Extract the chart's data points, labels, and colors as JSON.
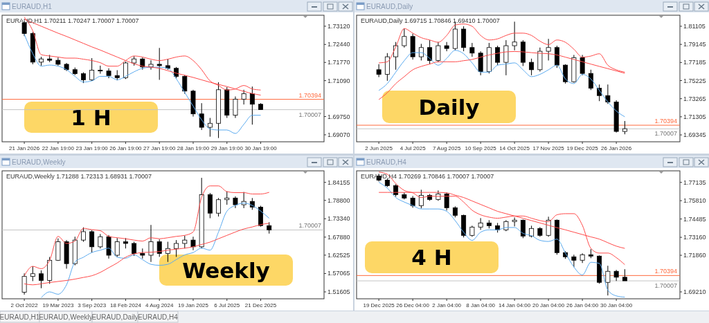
{
  "chart_data": [
    {
      "type": "candlestick",
      "title": "EURAUD,H1",
      "subtitle": "EURAUD,H1  1.70211 1.70247 1.70007 1.70007",
      "annotations": [
        "1 H"
      ],
      "categories": [
        "21 Jan 2026",
        null,
        null,
        null,
        "22 Jan 19:00",
        null,
        null,
        null,
        "23 Jan 19:00",
        null,
        null,
        null,
        "26 Jan 19:00",
        null,
        null,
        null,
        "27 Jan 19:00",
        null,
        null,
        null,
        "28 Jan 19:00",
        null,
        null,
        null,
        "29 Jan 19:00",
        null,
        null,
        null,
        "30 Jan 19:00",
        null,
        null,
        null,
        null,
        null,
        null,
        null
      ],
      "ohlc": [
        [
          1.7325,
          1.733,
          1.7275,
          1.7285
        ],
        [
          1.7285,
          1.729,
          1.717,
          1.7178
        ],
        [
          1.7178,
          1.7198,
          1.7165,
          1.719
        ],
        [
          1.719,
          1.7205,
          1.7178,
          1.7185
        ],
        [
          1.7185,
          1.7195,
          1.7165,
          1.717
        ],
        [
          1.717,
          1.7175,
          1.7145,
          1.715
        ],
        [
          1.715,
          1.7158,
          1.713,
          1.7135
        ],
        [
          1.7135,
          1.714,
          1.71,
          1.7112
        ],
        [
          1.7112,
          1.7193,
          1.7108,
          1.7148
        ],
        [
          1.7148,
          1.7165,
          1.7135,
          1.7145
        ],
        [
          1.7145,
          1.7155,
          1.7118,
          1.7128
        ],
        [
          1.7128,
          1.7148,
          1.711,
          1.712
        ],
        [
          1.712,
          1.718,
          1.7115,
          1.7175
        ],
        [
          1.7175,
          1.72,
          1.7165,
          1.719
        ],
        [
          1.719,
          1.7195,
          1.715,
          1.716
        ],
        [
          1.716,
          1.7185,
          1.715,
          1.717
        ],
        [
          1.717,
          1.7231,
          1.7112,
          1.7165
        ],
        [
          1.7165,
          1.719,
          1.715,
          1.7155
        ],
        [
          1.7155,
          1.716,
          1.7118,
          1.7125
        ],
        [
          1.7125,
          1.713,
          1.706,
          1.707
        ],
        [
          1.707,
          1.7075,
          1.6975,
          1.6985
        ],
        [
          1.6985,
          1.7025,
          1.6925,
          1.6935
        ],
        [
          1.6935,
          1.697,
          1.69,
          1.695
        ],
        [
          1.695,
          1.7103,
          1.6895,
          1.7075
        ],
        [
          1.7075,
          1.7085,
          1.697,
          1.698
        ],
        [
          1.698,
          1.705,
          1.697,
          1.704
        ],
        [
          1.704,
          1.7075,
          1.702,
          1.706
        ],
        [
          1.706,
          1.7087,
          1.6945,
          1.7021
        ],
        [
          1.7021,
          1.7025,
          1.7001,
          1.7001
        ],
        null,
        null,
        null,
        null,
        null,
        null,
        null
      ],
      "series": [
        {
          "type": "line",
          "color": "#ff4a4a",
          "values": [
            1.7346,
            1.7295,
            1.7206,
            1.7201,
            1.7197,
            1.7193,
            1.7193,
            1.7189,
            1.7184,
            1.7176,
            1.7163,
            1.7163,
            1.7184,
            1.7201,
            1.7197,
            1.7189,
            1.7184,
            1.7189,
            1.7197,
            1.7201,
            1.7184,
            1.715,
            1.7108,
            1.7091,
            1.7074,
            1.7078,
            1.7091,
            1.7078,
            1.7074,
            null,
            null,
            null,
            null,
            null,
            null,
            null
          ]
        },
        {
          "type": "line",
          "color": "#5aaaf0",
          "values": [
            1.7282,
            1.721,
            1.7163,
            1.7167,
            1.7163,
            1.715,
            1.7125,
            1.7104,
            1.7108,
            1.7125,
            1.7125,
            1.7112,
            1.7125,
            1.7142,
            1.7155,
            1.7159,
            1.7159,
            1.7155,
            1.7116,
            1.7065,
            1.7014,
            1.6963,
            1.6929,
            1.6925,
            1.6925,
            1.6912,
            1.6946,
            1.698,
            1.698,
            null,
            null,
            null,
            null,
            null,
            null,
            null
          ]
        },
        {
          "type": "line",
          "color": "#ff4a4a",
          "values": [
            1.7338,
            1.7325,
            1.7312,
            1.7299,
            1.7286,
            1.7274,
            1.7261,
            1.7248,
            1.7235,
            1.7223,
            1.721,
            1.7197,
            1.7184,
            1.7172,
            1.7163,
            1.7159,
            1.7155,
            1.7146,
            1.7137,
            1.7129,
            1.7121,
            1.7112,
            1.7103,
            1.7095,
            1.7087,
            1.7078,
            1.7069,
            1.7061,
            1.7055,
            null,
            null,
            null,
            null,
            null,
            null,
            null
          ]
        }
      ],
      "ylim": [
        1.6881,
        1.7353
      ],
      "yticks": [
        {
          "value": 1.7312,
          "label": "1.73120"
        },
        {
          "value": 1.7244,
          "label": "1.72440"
        },
        {
          "value": 1.7177,
          "label": "1.71770"
        },
        {
          "value": 1.7109,
          "label": "1.71090"
        },
        {
          "value": 1.6975,
          "label": "1.69750"
        },
        {
          "value": 1.6907,
          "label": "1.69070"
        }
      ],
      "ref_lines": [
        {
          "axis": "y",
          "value": 1.70394,
          "label": "1.70394",
          "color": "#ff6a3d"
        },
        {
          "axis": "y",
          "value": 1.70007,
          "label": "1.70007",
          "color": "#c4c4c4"
        }
      ]
    },
    {
      "type": "candlestick",
      "title": "EURAUD,Daily",
      "subtitle": "EURAUD,Daily  1.69715 1.70846 1.69410 1.70007",
      "annotations": [
        "Daily"
      ],
      "categories": [
        "2 Jun 2025",
        null,
        null,
        null,
        "4 Jul 2025",
        null,
        null,
        null,
        "7 Aug 2025",
        null,
        null,
        null,
        "10 Sep 2025",
        null,
        null,
        null,
        "14 Oct 2025",
        null,
        null,
        null,
        "17 Nov 2025",
        null,
        null,
        null,
        "19 Dec 2025",
        null,
        null,
        null,
        "26 Jan 2026",
        null,
        null,
        null,
        null,
        null,
        null,
        null
      ],
      "ohlc": [
        [
          1.764,
          1.77,
          1.756,
          1.759
        ],
        [
          1.759,
          1.782,
          1.752,
          1.778
        ],
        [
          1.778,
          1.794,
          1.764,
          1.79
        ],
        [
          1.79,
          1.8086,
          1.788,
          1.8
        ],
        [
          1.8,
          1.803,
          1.775,
          1.778
        ],
        [
          1.778,
          1.792,
          1.774,
          1.788
        ],
        [
          1.788,
          1.796,
          1.77,
          1.774
        ],
        [
          1.774,
          1.794,
          1.772,
          1.79
        ],
        [
          1.79,
          1.794,
          1.784,
          1.787
        ],
        [
          1.787,
          1.816,
          1.785,
          1.808
        ],
        [
          1.808,
          1.811,
          1.784,
          1.788
        ],
        [
          1.788,
          1.793,
          1.778,
          1.782
        ],
        [
          1.782,
          1.784,
          1.758,
          1.762
        ],
        [
          1.762,
          1.793,
          1.76,
          1.788
        ],
        [
          1.788,
          1.79,
          1.769,
          1.772
        ],
        [
          1.772,
          1.796,
          1.758,
          1.79
        ],
        [
          1.79,
          1.816,
          1.785,
          1.794
        ],
        [
          1.794,
          1.796,
          1.768,
          1.772
        ],
        [
          1.772,
          1.776,
          1.758,
          1.764
        ],
        [
          1.764,
          1.788,
          1.762,
          1.784
        ],
        [
          1.784,
          1.7974,
          1.774,
          1.788
        ],
        [
          1.788,
          1.79,
          1.766,
          1.769
        ],
        [
          1.769,
          1.77,
          1.749,
          1.751
        ],
        [
          1.751,
          1.78,
          1.75,
          1.777
        ],
        [
          1.777,
          1.78,
          1.758,
          1.76
        ],
        [
          1.76,
          1.764,
          1.742,
          1.744
        ],
        [
          1.744,
          1.748,
          1.73,
          1.736
        ],
        [
          1.736,
          1.748,
          1.727,
          1.729
        ],
        [
          1.729,
          1.731,
          1.696,
          1.6972
        ],
        [
          1.6972,
          1.7085,
          1.6941,
          1.7001
        ],
        null,
        null,
        null,
        null,
        null,
        null
      ],
      "series": [
        {
          "type": "line",
          "color": "#ff4a4a",
          "values": [
            1.7714,
            1.7726,
            1.7887,
            1.8086,
            1.8036,
            1.7987,
            1.7962,
            1.7937,
            1.8011,
            1.8123,
            1.8135,
            1.811,
            1.8011,
            1.7962,
            1.7974,
            1.8011,
            1.8036,
            1.8036,
            1.8011,
            1.7949,
            1.7912,
            1.7962,
            1.7937,
            1.7862,
            1.7776,
            1.7788,
            1.7813,
            1.7689,
            1.7639,
            1.7614,
            null,
            null,
            null,
            null,
            null,
            null
          ]
        },
        {
          "type": "line",
          "color": "#5aaaf0",
          "values": [
            1.7416,
            1.749,
            1.7614,
            1.7738,
            1.7825,
            1.7825,
            1.7763,
            1.7689,
            1.7763,
            1.785,
            1.7813,
            1.7714,
            1.7614,
            1.7614,
            1.7689,
            1.7701,
            1.7714,
            1.7639,
            1.7565,
            1.759,
            1.7639,
            1.7689,
            1.754,
            1.749,
            1.759,
            1.754,
            1.7416,
            1.7292,
            1.7193,
            1.7131,
            null,
            null,
            null,
            null,
            null,
            null
          ]
        },
        {
          "type": "line",
          "color": "#ff4a4a",
          "values": [
            1.7317,
            1.7391,
            1.749,
            1.7565,
            1.7639,
            1.7676,
            1.7701,
            1.7726,
            1.7726,
            1.7726,
            1.7738,
            1.7751,
            1.7776,
            1.78,
            1.7818,
            1.7833,
            1.7837,
            1.7833,
            1.7825,
            1.7818,
            1.7813,
            1.78,
            1.7776,
            1.7751,
            1.7726,
            1.7701,
            1.7676,
            1.7652,
            1.7627,
            1.7602,
            null,
            null,
            null,
            null,
            null,
            null
          ]
        }
      ],
      "ylim": [
        1.686,
        1.823
      ],
      "yticks": [
        1.81105,
        1.79145,
        1.77185,
        1.75225,
        1.73265,
        1.71305,
        1.69345
      ],
      "ref_lines": [
        {
          "axis": "y",
          "value": 1.70394,
          "label": "1.70394",
          "color": "#ff6a3d"
        },
        {
          "axis": "y",
          "value": 1.70007,
          "label": "1.70007",
          "color": "#c4c4c4"
        }
      ]
    },
    {
      "type": "candlestick",
      "title": "EURAUD,Weekly",
      "subtitle": "EURAUD,Weekly  1.71288 1.72313 1.68931 1.70007",
      "annotations": [
        "Weekly"
      ],
      "categories": [
        "2 Oct 2022",
        null,
        null,
        null,
        "19 Mar 2023",
        null,
        null,
        null,
        "3 Sep 2023",
        null,
        null,
        null,
        "18 Feb 2024",
        null,
        null,
        null,
        "4 Aug 2024",
        null,
        null,
        null,
        "19 Jan 2025",
        null,
        null,
        null,
        "6 Jul 2025",
        null,
        null,
        null,
        "21 Dec 2025",
        null,
        null,
        null,
        null,
        null,
        null,
        null
      ],
      "ohlc": [
        [
          1.515,
          1.571,
          1.508,
          1.562
        ],
        [
          1.562,
          1.592,
          1.548,
          1.57
        ],
        [
          1.57,
          1.58,
          1.527,
          1.55
        ],
        [
          1.55,
          1.62,
          1.54,
          1.61
        ],
        [
          1.61,
          1.675,
          1.608,
          1.665
        ],
        [
          1.665,
          1.67,
          1.585,
          1.6
        ],
        [
          1.6,
          1.68,
          1.595,
          1.67
        ],
        [
          1.67,
          1.708,
          1.665,
          1.695
        ],
        [
          1.695,
          1.699,
          1.633,
          1.65
        ],
        [
          1.65,
          1.688,
          1.645,
          1.68
        ],
        [
          1.68,
          1.685,
          1.615,
          1.625
        ],
        [
          1.625,
          1.676,
          1.62,
          1.665
        ],
        [
          1.665,
          1.676,
          1.645,
          1.66
        ],
        [
          1.66,
          1.665,
          1.623,
          1.63
        ],
        [
          1.63,
          1.645,
          1.615,
          1.625
        ],
        [
          1.625,
          1.715,
          1.605,
          1.665
        ],
        [
          1.665,
          1.672,
          1.62,
          1.63
        ],
        [
          1.63,
          1.665,
          1.605,
          1.645
        ],
        [
          1.645,
          1.67,
          1.62,
          1.66
        ],
        [
          1.66,
          1.683,
          1.645,
          1.67
        ],
        [
          1.67,
          1.68,
          1.64,
          1.65
        ],
        [
          1.65,
          1.855,
          1.645,
          1.805
        ],
        [
          1.805,
          1.81,
          1.735,
          1.75
        ],
        [
          1.75,
          1.795,
          1.74,
          1.79
        ],
        [
          1.79,
          1.815,
          1.775,
          1.795
        ],
        [
          1.795,
          1.8,
          1.765,
          1.775
        ],
        [
          1.775,
          1.813,
          1.765,
          1.785
        ],
        [
          1.785,
          1.795,
          1.76,
          1.768
        ],
        [
          1.768,
          1.772,
          1.71,
          1.713
        ],
        [
          1.71288,
          1.72313,
          1.68931,
          1.70007
        ],
        null,
        null,
        null,
        null,
        null,
        null
      ],
      "series": [
        {
          "type": "line",
          "color": "#ff4a4a",
          "values": [
            1.564,
            1.592,
            1.585,
            1.61,
            1.681,
            1.66,
            1.667,
            1.705,
            1.701,
            1.698,
            1.681,
            1.677,
            1.674,
            1.67,
            1.667,
            1.677,
            1.674,
            1.677,
            1.681,
            1.684,
            1.694,
            1.797,
            1.831,
            1.831,
            1.814,
            1.811,
            1.811,
            1.807,
            1.807,
            1.812,
            null,
            null,
            null,
            null,
            null,
            null
          ]
        },
        {
          "type": "line",
          "color": "#5aaaf0",
          "values": [
            null,
            null,
            1.499,
            1.516,
            1.509,
            1.537,
            1.605,
            1.619,
            1.633,
            1.64,
            1.646,
            1.619,
            1.616,
            1.626,
            1.612,
            1.598,
            1.595,
            1.598,
            1.612,
            1.626,
            1.633,
            1.646,
            1.64,
            1.694,
            1.756,
            1.773,
            1.78,
            1.773,
            1.756,
            1.735,
            null,
            null,
            null,
            null,
            null,
            null
          ]
        },
        {
          "type": "line",
          "color": "#ff4a4a",
          "values": [
            1.54,
            1.537,
            1.54,
            1.544,
            1.547,
            1.55,
            1.554,
            1.559,
            1.564,
            1.574,
            1.588,
            1.602,
            1.619,
            1.629,
            1.633,
            1.634,
            1.636,
            1.64,
            1.643,
            1.646,
            1.65,
            1.657,
            1.664,
            1.674,
            1.684,
            1.694,
            1.703,
            1.709,
            1.716,
            1.72,
            null,
            null,
            null,
            null,
            null,
            null
          ]
        }
      ],
      "ylim": [
        1.4955,
        1.8758
      ],
      "yticks": [
        1.84155,
        {
          "value": 1.788,
          "label": "1.78800"
        },
        {
          "value": 1.7334,
          "label": "1.73340"
        },
        {
          "value": 1.6788,
          "label": "1.67880"
        },
        1.62525,
        1.57065,
        1.51605
      ],
      "ref_lines": [
        {
          "axis": "y",
          "value": 1.70007,
          "label": "1.70007",
          "color": "#c4c4c4"
        }
      ]
    },
    {
      "type": "candlestick",
      "title": "EURAUD,H4",
      "subtitle": "EURAUD,H4  1.70269 1.70846 1.70007 1.70007",
      "annotations": [
        "4 H"
      ],
      "categories": [
        "19 Dec 2025",
        null,
        null,
        null,
        "26 Dec 04:00",
        null,
        null,
        null,
        "2 Jan 04:00",
        null,
        null,
        null,
        "8 Jan 04:00",
        null,
        null,
        null,
        "14 Jan 04:00",
        null,
        null,
        null,
        "20 Jan 04:00",
        null,
        null,
        null,
        "26 Jan 04:00",
        null,
        null,
        null,
        "30 Jan 04:00",
        null,
        null,
        null,
        null,
        null,
        null,
        null
      ],
      "ohlc": [
        [
          1.776,
          1.7775,
          1.772,
          1.773
        ],
        [
          1.773,
          1.774,
          1.768,
          1.769
        ],
        [
          1.769,
          1.77,
          1.761,
          1.7625
        ],
        [
          1.7625,
          1.764,
          1.759,
          1.76
        ],
        [
          1.76,
          1.7615,
          1.753,
          1.7545
        ],
        [
          1.7545,
          1.766,
          1.7525,
          1.762
        ],
        [
          1.762,
          1.763,
          1.758,
          1.759
        ],
        [
          1.759,
          1.7655,
          1.758,
          1.763
        ],
        [
          1.763,
          1.764,
          1.751,
          1.753
        ],
        [
          1.753,
          1.754,
          1.746,
          1.7475
        ],
        [
          1.7475,
          1.748,
          1.7315,
          1.733
        ],
        [
          1.733,
          1.74,
          1.732,
          1.739
        ],
        [
          1.739,
          1.7455,
          1.737,
          1.742
        ],
        [
          1.742,
          1.744,
          1.738,
          1.74
        ],
        [
          1.74,
          1.742,
          1.735,
          1.737
        ],
        [
          1.737,
          1.744,
          1.736,
          1.743
        ],
        [
          1.743,
          1.746,
          1.7395,
          1.744
        ],
        [
          1.744,
          1.7445,
          1.731,
          1.7325
        ],
        [
          1.7325,
          1.74,
          1.7315,
          1.738
        ],
        [
          1.738,
          1.739,
          1.732,
          1.733
        ],
        [
          1.733,
          1.7465,
          1.732,
          1.744
        ],
        [
          1.744,
          1.7445,
          1.719,
          1.7205
        ],
        [
          1.7205,
          1.7215,
          1.716,
          1.7175
        ],
        [
          1.7175,
          1.719,
          1.71,
          1.715
        ],
        [
          1.715,
          1.72,
          1.713,
          1.719
        ],
        [
          1.719,
          1.723,
          1.7165,
          1.718
        ],
        [
          1.718,
          1.7185,
          1.698,
          1.699
        ],
        [
          1.699,
          1.711,
          1.6895,
          1.707
        ],
        [
          1.707,
          1.708,
          1.7,
          1.7027
        ],
        [
          1.7027,
          1.7085,
          1.7001,
          1.7001
        ],
        null,
        null,
        null,
        null,
        null,
        null
      ],
      "series": [
        {
          "type": "line",
          "color": "#ff4a4a",
          "values": [
            1.7788,
            1.7772,
            1.7705,
            1.7655,
            1.7638,
            1.7604,
            1.7613,
            1.7613,
            1.7613,
            1.7613,
            1.7571,
            1.7512,
            1.7479,
            1.7462,
            1.7454,
            1.7462,
            1.747,
            1.747,
            1.7454,
            1.7437,
            1.7429,
            1.7479,
            1.7487,
            1.7487,
            1.7403,
            1.7236,
            1.7202,
            1.7202,
            1.7169,
            1.7118,
            null,
            null,
            null,
            null,
            null,
            null
          ]
        },
        {
          "type": "line",
          "color": "#5aaaf0",
          "values": [
            1.7714,
            1.7672,
            1.7604,
            1.7571,
            1.7546,
            1.7521,
            1.7521,
            1.7521,
            1.7504,
            1.7437,
            1.7353,
            1.7294,
            1.7353,
            1.737,
            1.737,
            1.7387,
            1.7387,
            1.7345,
            1.7328,
            1.7294,
            1.7286,
            1.7303,
            1.7202,
            1.7101,
            1.7043,
            1.7135,
            1.7127,
            1.6934,
            1.6892,
            1.6883,
            null,
            null,
            null,
            null,
            null,
            null
          ]
        },
        {
          "type": "line",
          "color": "#ff4a4a",
          "values": [
            1.7641,
            1.7641,
            1.7641,
            1.7641,
            1.7641,
            1.7641,
            1.7641,
            1.7641,
            1.7638,
            1.7621,
            1.7604,
            1.7579,
            1.7554,
            1.7529,
            1.7504,
            1.7487,
            1.747,
            1.7454,
            1.7437,
            1.742,
            1.7403,
            1.7386,
            1.737,
            1.7353,
            1.7336,
            1.7319,
            1.7303,
            1.7277,
            1.7252,
            1.7236,
            null,
            null,
            null,
            null,
            null,
            null
          ]
        }
      ],
      "ylim": [
        1.6871,
        1.7797
      ],
      "yticks": [
        1.77135,
        {
          "value": 1.7581,
          "label": "1.75810"
        },
        1.74485,
        {
          "value": 1.7316,
          "label": "1.73160"
        },
        {
          "value": 1.7186,
          "label": "1.71860"
        },
        {
          "value": 1.6921,
          "label": "1.69210"
        }
      ],
      "ref_lines": [
        {
          "axis": "y",
          "value": 1.70394,
          "label": "1.70394",
          "color": "#ff6a3d"
        },
        {
          "axis": "y",
          "value": 1.70007,
          "label": "1.70007",
          "color": "#c4c4c4"
        }
      ]
    },
    {
      "type": "other",
      "annotations": [
        "EURAUD,H1",
        "EURAUD,Weekly",
        "EURAUD,Daily",
        "EURAUD,H4"
      ]
    }
  ]
}
